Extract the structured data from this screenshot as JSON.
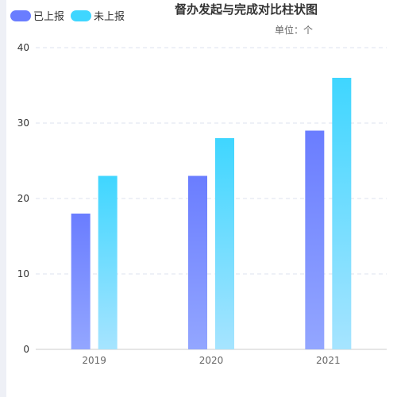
{
  "chart_data": {
    "type": "bar",
    "title": "督办发起与完成对比柱状图",
    "unit": "单位：个",
    "categories": [
      "2019",
      "2020",
      "2021"
    ],
    "series": [
      {
        "name": "已上报",
        "values": [
          18,
          23,
          29
        ],
        "color_top": "#6a7dff",
        "color_bottom": "#93a6ff"
      },
      {
        "name": "未上报",
        "values": [
          23,
          28,
          36
        ],
        "color_top": "#3fd6ff",
        "color_bottom": "#a6e4ff"
      }
    ],
    "ylim": [
      0,
      40
    ],
    "yticks": [
      "0",
      "10",
      "20",
      "30",
      "40"
    ],
    "grid": true,
    "legend_position": "top-left"
  },
  "colors": {
    "grid": "#dde3ef",
    "axis": "#cccccc",
    "left_strip": "#eef0f6"
  }
}
